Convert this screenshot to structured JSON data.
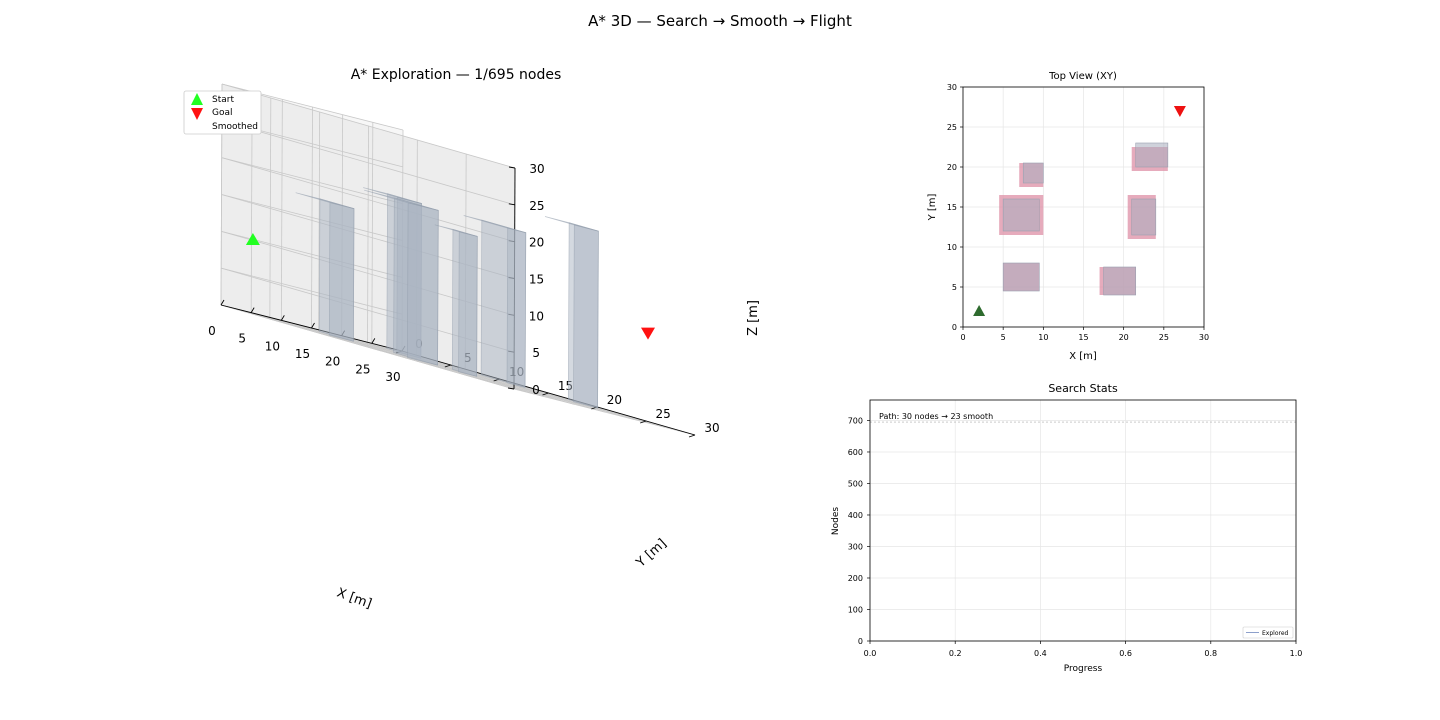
{
  "figure": {
    "suptitle": "A* 3D — Search → Smooth → Flight"
  },
  "chart_data": [
    {
      "id": "scene3d",
      "type": "scatter",
      "title": "A* Exploration — 1/695 nodes",
      "xlabel": "X [m]",
      "ylabel": "Y [m]",
      "zlabel": "Z [m]",
      "xlim": [
        0,
        30
      ],
      "ylim": [
        0,
        30
      ],
      "zlim": [
        0,
        30
      ],
      "ticks": [
        0,
        5,
        10,
        15,
        20,
        25,
        30
      ],
      "grid": true,
      "legend": {
        "placement": "upper-left",
        "entries": [
          {
            "label": "Start",
            "marker": "triangle-up",
            "color": "#22ff22"
          },
          {
            "label": "Goal",
            "marker": "triangle-down",
            "color": "#ff1111"
          },
          {
            "label": "Smoothed",
            "marker": "line",
            "color": "#1f77b4"
          }
        ]
      },
      "start": [
        2,
        2,
        10
      ],
      "goal": [
        27,
        27,
        12
      ],
      "obstacles": [
        {
          "x": [
            7,
            10
          ],
          "y": [
            17.5,
            20
          ],
          "z": [
            0,
            19
          ]
        },
        {
          "x": [
            5,
            10
          ],
          "y": [
            11.5,
            16
          ],
          "z": [
            0,
            21
          ]
        },
        {
          "x": [
            22,
            26
          ],
          "y": [
            19.5,
            22.5
          ],
          "z": [
            0,
            24
          ]
        },
        {
          "x": [
            21.5,
            24.5
          ],
          "y": [
            11.5,
            16
          ],
          "z": [
            0,
            21
          ]
        },
        {
          "x": [
            5,
            9
          ],
          "y": [
            4.5,
            8
          ],
          "z": [
            0,
            18
          ]
        },
        {
          "x": [
            17,
            21
          ],
          "y": [
            4,
            7.5
          ],
          "z": [
            0,
            21
          ]
        }
      ],
      "obstacle_color": "#a9b4c2"
    },
    {
      "id": "topview",
      "type": "scatter",
      "title": "Top View (XY)",
      "xlabel": "X [m]",
      "ylabel": "Y [m]",
      "xlim": [
        0,
        30
      ],
      "ylim": [
        0,
        30
      ],
      "ticks": [
        0,
        5,
        10,
        15,
        20,
        25,
        30
      ],
      "grid": true,
      "start": [
        2,
        2
      ],
      "goal": [
        27,
        27
      ],
      "start_color": "#2e6b2e",
      "goal_color": "#ee1111",
      "obstacles_planned": [
        {
          "x": [
            7,
            10
          ],
          "y": [
            17.5,
            20.5
          ]
        },
        {
          "x": [
            4.5,
            10
          ],
          "y": [
            11.5,
            16.5
          ]
        },
        {
          "x": [
            21,
            25.5
          ],
          "y": [
            19.5,
            22.5
          ]
        },
        {
          "x": [
            20.5,
            24
          ],
          "y": [
            11,
            16.5
          ]
        },
        {
          "x": [
            5,
            9.5
          ],
          "y": [
            4.5,
            8
          ]
        },
        {
          "x": [
            17,
            21.5
          ],
          "y": [
            4,
            7.5
          ]
        }
      ],
      "obstacles_actual": [
        {
          "x": [
            7.5,
            10
          ],
          "y": [
            18,
            20.5
          ]
        },
        {
          "x": [
            5,
            9.5
          ],
          "y": [
            12,
            16
          ]
        },
        {
          "x": [
            21.5,
            25.5
          ],
          "y": [
            20,
            23
          ]
        },
        {
          "x": [
            21,
            24
          ],
          "y": [
            11.5,
            16
          ]
        },
        {
          "x": [
            5,
            9.5
          ],
          "y": [
            4.5,
            8
          ]
        },
        {
          "x": [
            17.5,
            21.5
          ],
          "y": [
            4,
            7.5
          ]
        }
      ],
      "planned_color": "#dd8fa5",
      "actual_color": "#a8adbd"
    },
    {
      "id": "stats",
      "type": "line",
      "title": "Search Stats",
      "xlabel": "Progress",
      "ylabel": "Nodes",
      "xlim": [
        0,
        1.0
      ],
      "ylim": [
        0,
        765
      ],
      "xticks": [
        "0.0",
        "0.2",
        "0.4",
        "0.6",
        "0.8",
        "1.0"
      ],
      "yticks": [
        0,
        100,
        200,
        300,
        400,
        500,
        600,
        700
      ],
      "grid": true,
      "annotation": "Path: 30 nodes → 23 smooth",
      "reference_line": 695,
      "series": [
        {
          "name": "Explored",
          "x": [
            0
          ],
          "y": [
            1
          ],
          "color": "#8da0cb"
        }
      ],
      "legend": {
        "placement": "lower-right"
      }
    }
  ]
}
